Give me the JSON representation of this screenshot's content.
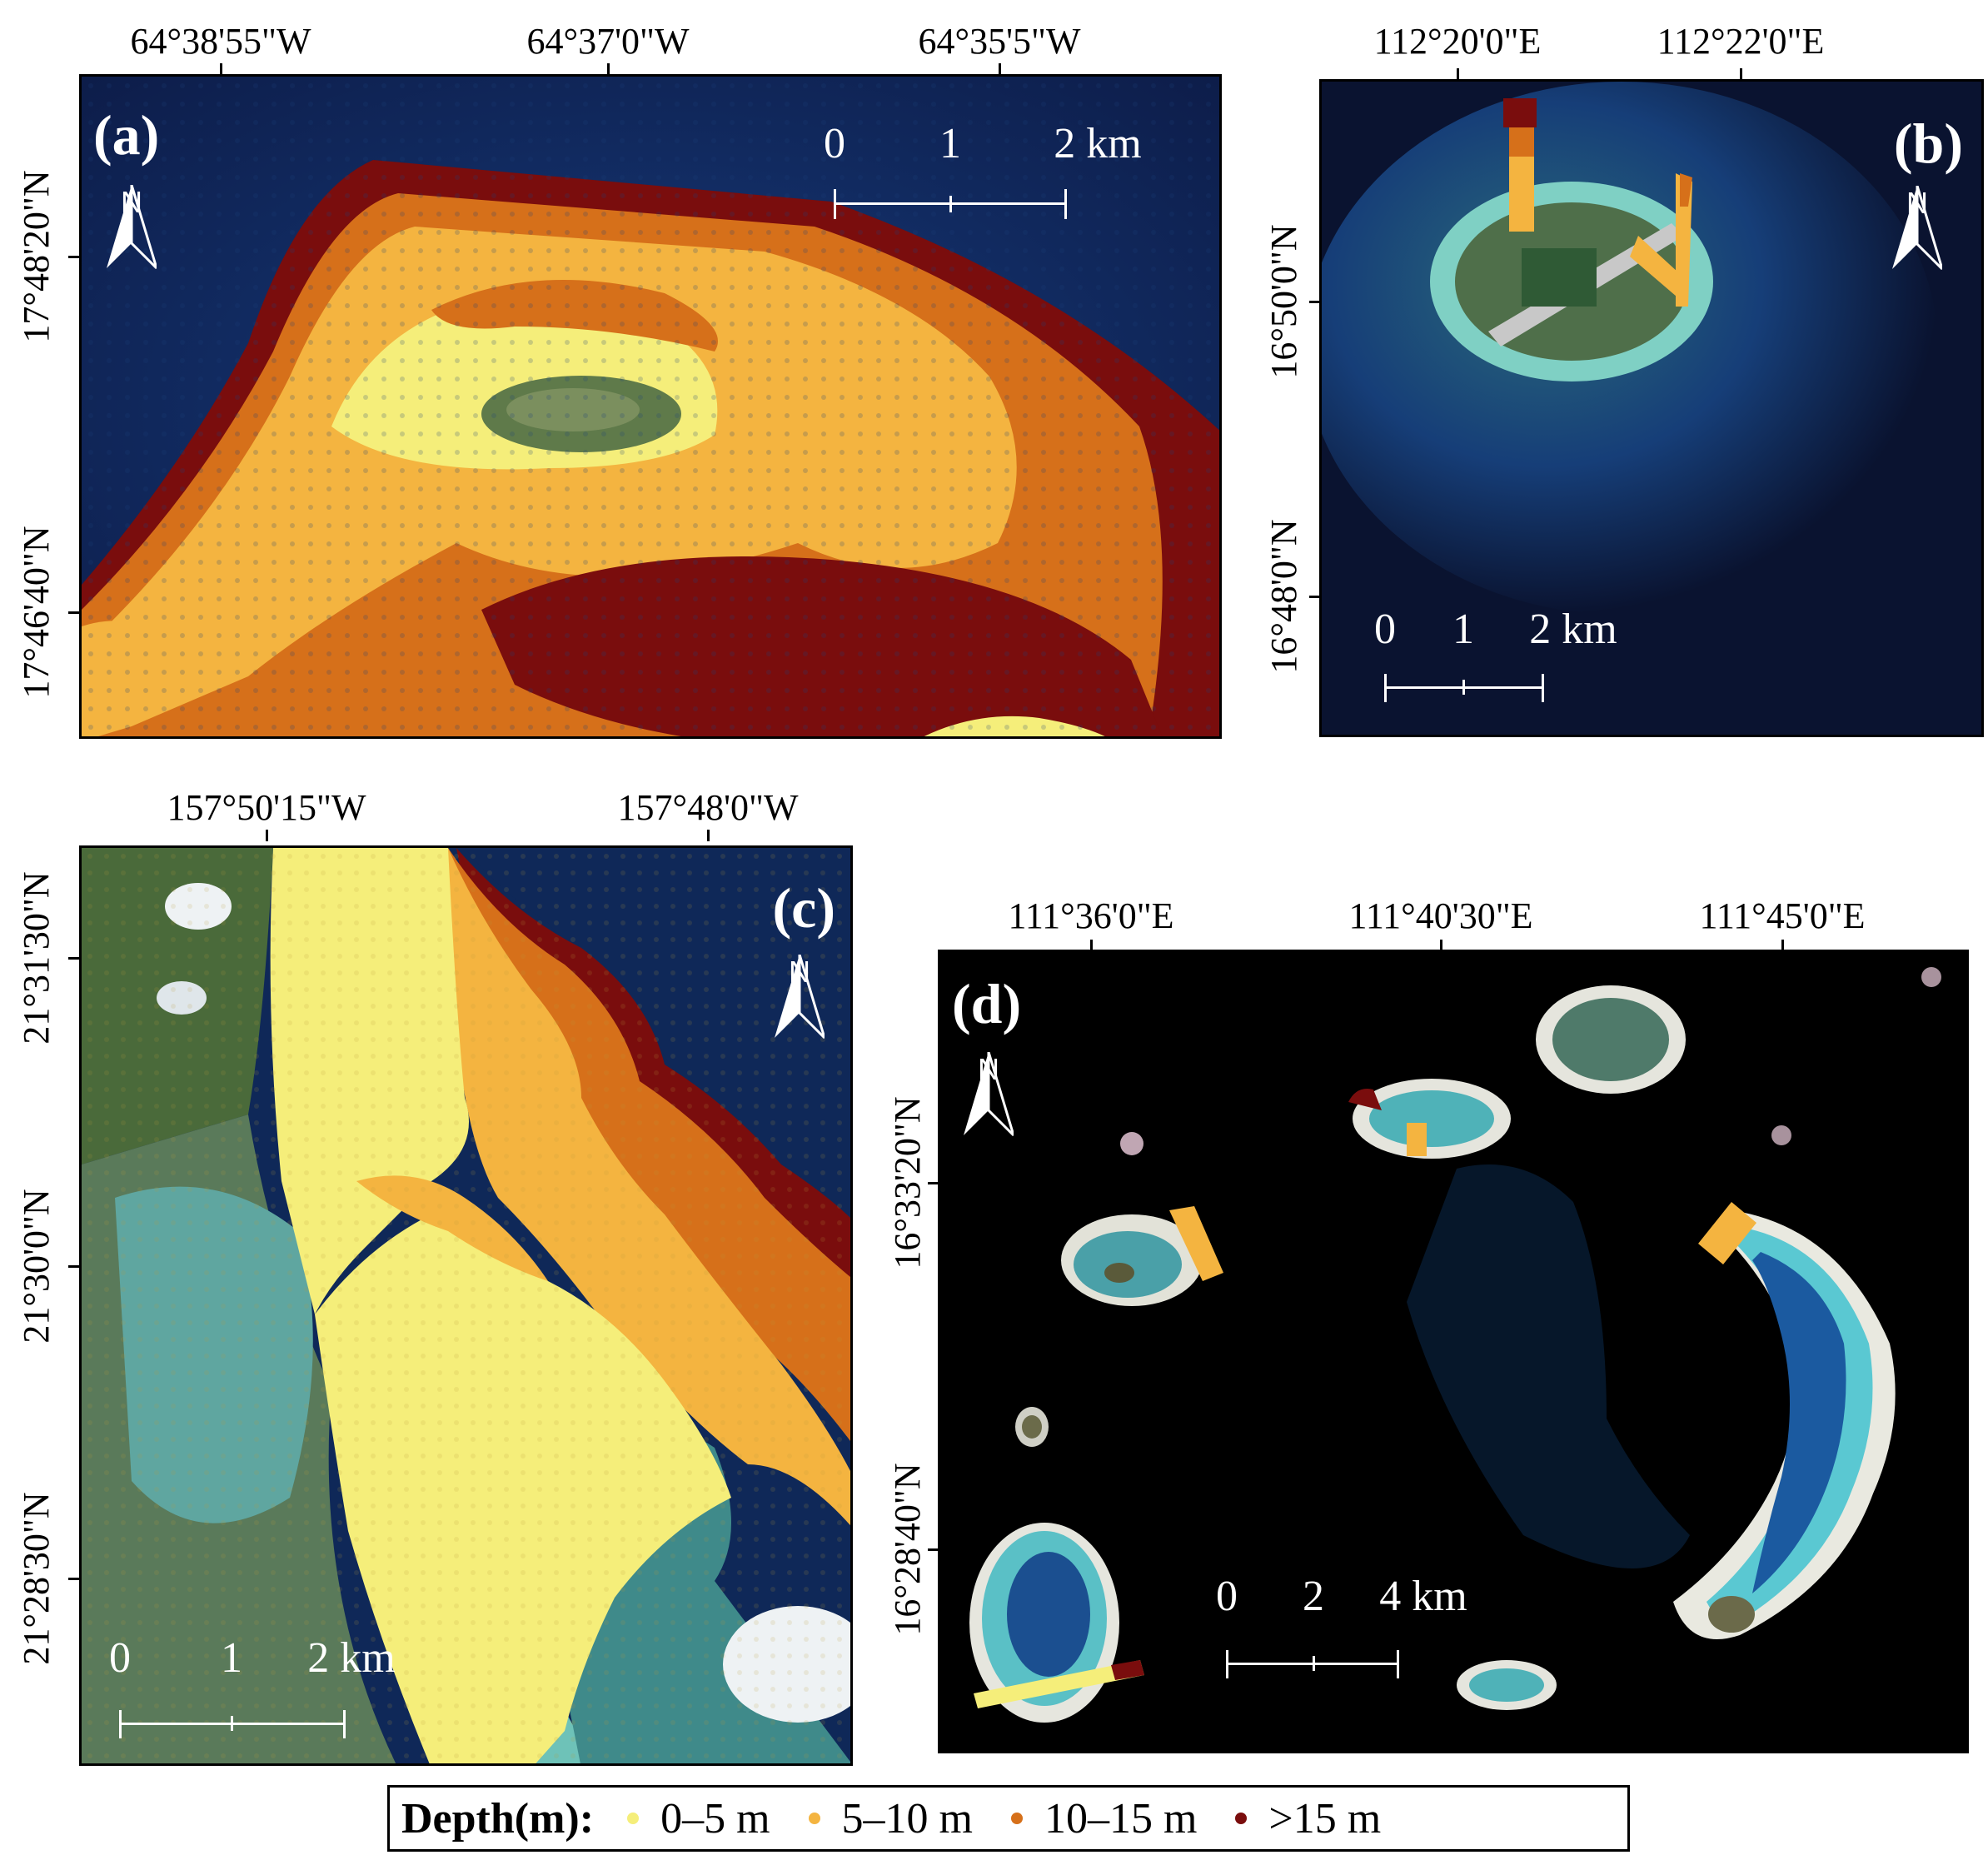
{
  "panels": {
    "a": {
      "label": "(a)",
      "lon_labels": [
        "64°38'55\"W",
        "64°37'0\"W",
        "64°35'5\"W"
      ],
      "lat_labels": [
        "17°48'20\"N",
        "17°46'40\"N"
      ],
      "scale": [
        "0",
        "1",
        "2 km"
      ],
      "north": "N"
    },
    "b": {
      "label": "(b)",
      "lon_labels": [
        "112°20'0\"E",
        "112°22'0\"E"
      ],
      "lat_labels": [
        "16°50'0\"N",
        "16°48'0\"N"
      ],
      "scale": [
        "0",
        "1",
        "2 km"
      ],
      "north": "N"
    },
    "c": {
      "label": "(c)",
      "lon_labels": [
        "157°50'15\"W",
        "157°48'0\"W"
      ],
      "lat_labels": [
        "21°31'30\"N",
        "21°30'0\"N",
        "21°28'30\"N"
      ],
      "scale": [
        "0",
        "1",
        "2 km"
      ],
      "north": "N"
    },
    "d": {
      "label": "(d)",
      "lon_labels": [
        "111°36'0\"E",
        "111°40'30\"E",
        "111°45'0\"E"
      ],
      "lat_labels": [
        "16°33'20\"N",
        "16°28'40\"N"
      ],
      "scale": [
        "0",
        "2",
        "4 km"
      ],
      "north": "N"
    }
  },
  "legend": {
    "title": "Depth(m):",
    "items": [
      {
        "label": "0–5 m",
        "color": "#f5ee7a"
      },
      {
        "label": "5–10 m",
        "color": "#f4b440"
      },
      {
        "label": "10–15 m",
        "color": "#d6701a"
      },
      {
        "label": ">15 m",
        "color": "#7a0d0d"
      }
    ]
  }
}
